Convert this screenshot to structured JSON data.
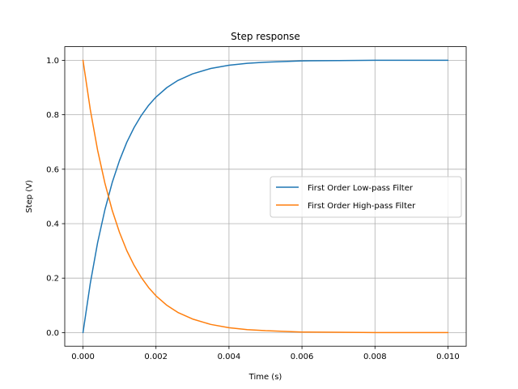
{
  "chart_data": {
    "type": "line",
    "title": "Step response",
    "xlabel": "Time (s)",
    "ylabel": "Step (V)",
    "xlim": [
      -0.0005,
      0.0105
    ],
    "ylim": [
      -0.05,
      1.05
    ],
    "xticks": [
      0.0,
      0.002,
      0.004,
      0.006,
      0.008,
      0.01
    ],
    "xtick_labels": [
      "0.000",
      "0.002",
      "0.004",
      "0.006",
      "0.008",
      "0.010"
    ],
    "yticks": [
      0.0,
      0.2,
      0.4,
      0.6,
      0.8,
      1.0
    ],
    "ytick_labels": [
      "0.0",
      "0.2",
      "0.4",
      "0.6",
      "0.8",
      "1.0"
    ],
    "grid": true,
    "legend_position": "center-right",
    "x": [
      0.0,
      0.0002,
      0.0004,
      0.0006,
      0.0008,
      0.001,
      0.0012,
      0.0014,
      0.0016,
      0.0018,
      0.002,
      0.0023,
      0.0026,
      0.003,
      0.0035,
      0.004,
      0.0045,
      0.005,
      0.006,
      0.007,
      0.008,
      0.009,
      0.01
    ],
    "series": [
      {
        "name": "First Order Low-pass Filter",
        "color": "#1f77b4",
        "values": [
          0.0,
          0.181,
          0.33,
          0.451,
          0.551,
          0.632,
          0.699,
          0.753,
          0.798,
          0.835,
          0.865,
          0.9,
          0.926,
          0.95,
          0.97,
          0.982,
          0.989,
          0.993,
          0.998,
          0.999,
          1.0,
          1.0,
          1.0
        ]
      },
      {
        "name": "First Order High-pass Filter",
        "color": "#ff7f0e",
        "values": [
          1.0,
          0.819,
          0.67,
          0.549,
          0.449,
          0.368,
          0.301,
          0.247,
          0.202,
          0.165,
          0.135,
          0.1,
          0.074,
          0.05,
          0.03,
          0.018,
          0.011,
          0.007,
          0.002,
          0.001,
          0.0,
          0.0,
          0.0
        ]
      }
    ]
  }
}
